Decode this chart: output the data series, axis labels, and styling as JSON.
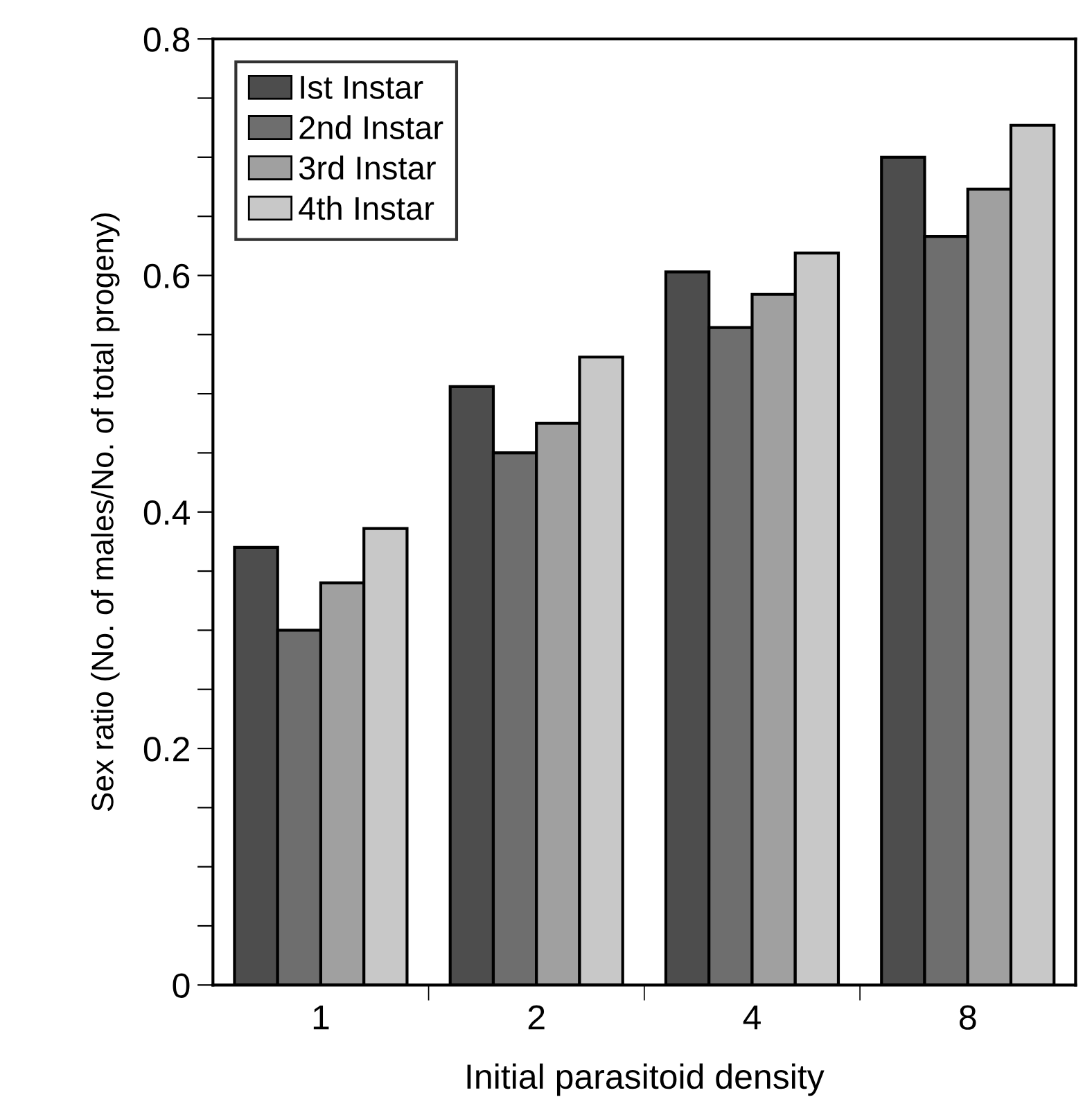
{
  "chart_data": {
    "type": "bar",
    "xlabel": "Initial parasitoid density",
    "ylabel": "Sex ratio (No. of males/No. of total progeny)",
    "categories": [
      "1",
      "2",
      "4",
      "8"
    ],
    "series": [
      {
        "name": "Ist Instar",
        "color": "#4d4d4d",
        "values": [
          0.37,
          0.506,
          0.603,
          0.7
        ]
      },
      {
        "name": "2nd Instar",
        "color": "#6e6e6e",
        "values": [
          0.3,
          0.45,
          0.556,
          0.633
        ]
      },
      {
        "name": "3rd Instar",
        "color": "#a0a0a0",
        "values": [
          0.34,
          0.475,
          0.584,
          0.673
        ]
      },
      {
        "name": "4th Instar",
        "color": "#c8c8c8",
        "values": [
          0.386,
          0.531,
          0.619,
          0.727
        ]
      }
    ],
    "ylim": [
      0,
      0.8
    ],
    "yticks": [
      0,
      {
        "value": 0.05,
        "label": null
      },
      {
        "value": 0.1,
        "label": null
      },
      {
        "value": 0.15,
        "label": null
      },
      0.2,
      {
        "value": 0.25,
        "label": null
      },
      {
        "value": 0.3,
        "label": null
      },
      {
        "value": 0.35,
        "label": null
      },
      0.4,
      {
        "value": 0.45,
        "label": null
      },
      {
        "value": 0.5,
        "label": null
      },
      {
        "value": 0.55,
        "label": null
      },
      0.6,
      {
        "value": 0.65,
        "label": null
      },
      {
        "value": 0.7,
        "label": null
      },
      {
        "value": 0.75,
        "label": null
      },
      0.8
    ],
    "legend": "top left",
    "grid": false
  }
}
